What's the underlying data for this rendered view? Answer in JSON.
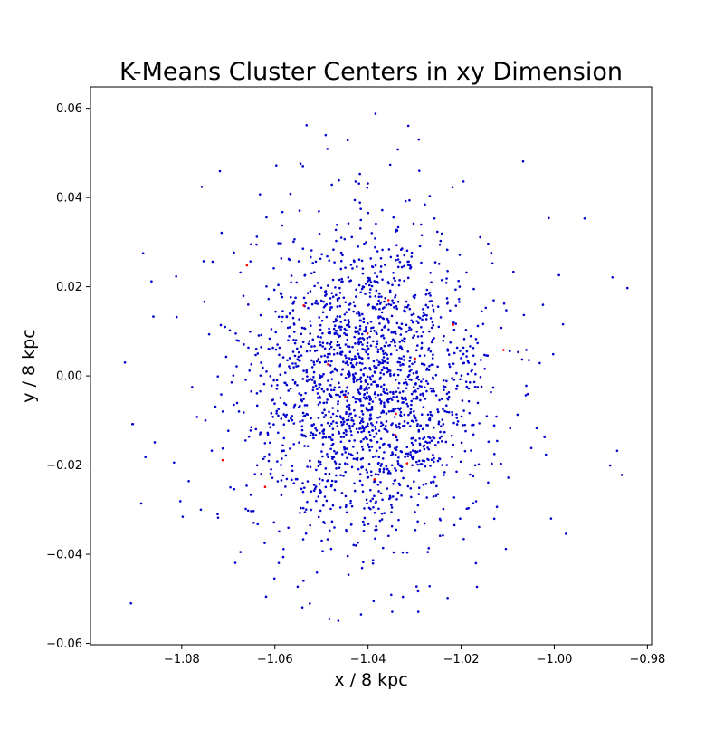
{
  "chart_data": {
    "type": "scatter",
    "title": "K-Means Cluster Centers in xy Dimension",
    "xlabel": "x / 8 kpc",
    "ylabel": "y / 8 kpc",
    "xlim": [
      -1.0996,
      -0.9791
    ],
    "ylim": [
      -0.0603,
      0.0648
    ],
    "xticks": [
      -1.08,
      -1.06,
      -1.04,
      -1.02,
      -1.0,
      -0.98
    ],
    "yticks": [
      -0.06,
      -0.04,
      -0.02,
      0.0,
      0.02,
      0.04,
      0.06
    ],
    "xtick_labels": [
      "−1.08",
      "−1.06",
      "−1.04",
      "−1.02",
      "−1.00",
      "−0.98"
    ],
    "ytick_labels": [
      "−0.06",
      "−0.04",
      "−0.02",
      "0.00",
      "0.02",
      "0.04",
      "0.06"
    ],
    "grid": false,
    "series": [
      {
        "color": "#0000cc",
        "distribution": {
          "n": 2000,
          "center": [
            -1.04,
            -0.002
          ],
          "sigma_x": 0.013,
          "sigma_y": 0.0175,
          "x_range": [
            -1.092,
            -0.983
          ],
          "y_range": [
            -0.055,
            0.059
          ]
        },
        "points": [
          [
            -1.0922,
            0.003
          ],
          [
            -1.0906,
            -0.0108
          ],
          [
            -1.0883,
            0.0275
          ],
          [
            -1.0865,
            0.0212
          ],
          [
            -1.0858,
            -0.0149
          ],
          [
            -1.0878,
            -0.0182
          ],
          [
            -1.0812,
            0.0223
          ],
          [
            -1.0803,
            -0.0281
          ],
          [
            -1.0798,
            -0.0316
          ],
          [
            -1.0757,
            0.0424
          ],
          [
            -1.0718,
            0.0459
          ],
          [
            -1.0632,
            0.0407
          ],
          [
            -1.0597,
            0.0472
          ],
          [
            -1.0545,
            0.0476
          ],
          [
            -1.0532,
            0.0562
          ],
          [
            -1.0491,
            0.054
          ],
          [
            -1.0384,
            0.0588
          ],
          [
            -1.0336,
            0.0508
          ],
          [
            -1.0291,
            0.053
          ],
          [
            -1.0195,
            0.0436
          ],
          [
            -1.0067,
            0.0481
          ],
          [
            -1.0012,
            0.0354
          ],
          [
            -0.9935,
            0.0353
          ],
          [
            -0.9875,
            0.0221
          ],
          [
            -0.9843,
            0.0197
          ],
          [
            -0.9865,
            -0.0168
          ],
          [
            -0.9855,
            -0.0222
          ],
          [
            -0.988,
            -0.0201
          ],
          [
            -0.9975,
            -0.0354
          ],
          [
            -1.0007,
            -0.032
          ],
          [
            -1.0104,
            -0.0388
          ],
          [
            -1.0166,
            -0.0473
          ],
          [
            -1.0229,
            -0.0498
          ],
          [
            -1.0292,
            -0.0529
          ],
          [
            -1.0348,
            -0.0529
          ],
          [
            -1.0388,
            -0.0505
          ],
          [
            -1.0415,
            -0.0535
          ],
          [
            -1.0483,
            -0.0545
          ],
          [
            -1.0541,
            -0.0519
          ],
          [
            -1.0619,
            -0.0495
          ],
          [
            -1.0674,
            -0.0395
          ],
          [
            -1.0723,
            -0.031
          ],
          [
            -1.0759,
            -0.03
          ],
          [
            -1.0785,
            -0.0236
          ],
          [
            -1.0887,
            -0.0286
          ],
          [
            -1.0811,
            0.0132
          ],
          [
            -1.0861,
            0.0133
          ],
          [
            -1.0905,
            -0.0108
          ]
        ]
      },
      {
        "color": "#ff0000",
        "points": [
          [
            -1.066,
            0.0248
          ],
          [
            -1.0712,
            -0.0189
          ],
          [
            -1.0621,
            -0.0249
          ],
          [
            -1.0538,
            0.0158
          ],
          [
            -1.0449,
            -0.0047
          ],
          [
            -1.0401,
            0.0095
          ],
          [
            -1.0356,
            0.017
          ],
          [
            -1.034,
            -0.0085
          ],
          [
            -1.0341,
            -0.0133
          ],
          [
            -1.0217,
            0.0115
          ],
          [
            -1.0109,
            0.0058
          ],
          [
            -1.0316,
            -0.0196
          ],
          [
            -1.0386,
            -0.0232
          ],
          [
            -1.0486,
            0.0026
          ],
          [
            -1.0299,
            0.0039
          ]
        ]
      }
    ]
  }
}
